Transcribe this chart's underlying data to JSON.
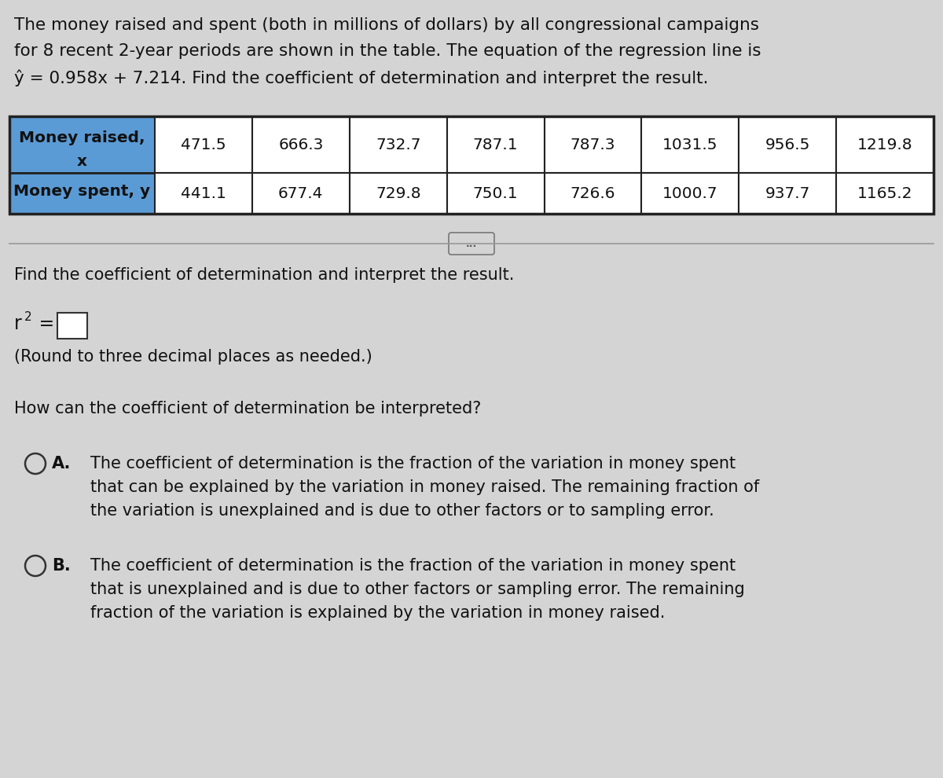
{
  "background_color": "#d4d4d4",
  "content_bg": "#d4d4d4",
  "intro_line1": "The money raised and spent (both in millions of dollars) by all congressional campaigns",
  "intro_line2": "for 8 recent 2-year periods are shown in the table. The equation of the regression line is",
  "intro_line3": "ŷ = 0.958x + 7.214. Find the coefficient of determination and interpret the result.",
  "table": {
    "row1_label_line1": "Money raised,",
    "row1_label_line2": "x",
    "row2_label": "Money spent, y",
    "values_x": [
      "471.5",
      "666.3",
      "732.7",
      "787.1",
      "787.3",
      "1031.5",
      "956.5",
      "1219.8"
    ],
    "values_y": [
      "441.1",
      "677.4",
      "729.8",
      "750.1",
      "726.6",
      "1000.7",
      "937.7",
      "1165.2"
    ],
    "header_bg": "#5b9bd5",
    "cell_bg": "#ffffff",
    "border_color": "#222222"
  },
  "ellipsis_text": "...",
  "section2_text": "Find the coefficient of determination and interpret the result.",
  "round_note": "(Round to three decimal places as needed.)",
  "interpret_question": "How can the coefficient of determination be interpreted?",
  "option_A_label": "A.",
  "option_A_lines": [
    "The coefficient of determination is the fraction of the variation in money spent",
    "that can be explained by the variation in money raised. The remaining fraction of",
    "the variation is unexplained and is due to other factors or to sampling error."
  ],
  "option_B_label": "B.",
  "option_B_lines": [
    "The coefficient of determination is the fraction of the variation in money spent",
    "that is unexplained and is due to other factors or sampling error. The remaining",
    "fraction of the variation is explained by the variation in money raised."
  ],
  "text_color": "#111111",
  "font_size_intro": 15.5,
  "font_size_table_header": 14.5,
  "font_size_table_data": 14.5,
  "font_size_body": 15.0,
  "font_size_options": 15.0
}
